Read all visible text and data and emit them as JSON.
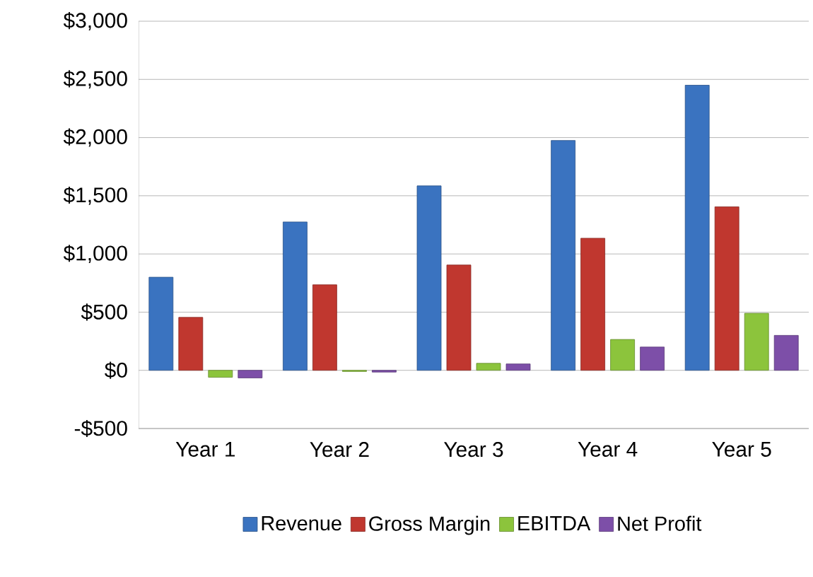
{
  "chart_data": {
    "type": "bar",
    "categories": [
      "Year 1",
      "Year 2",
      "Year 3",
      "Year 4",
      "Year 5"
    ],
    "series": [
      {
        "name": "Revenue",
        "color": "#3a73c0",
        "values": [
          800,
          1275,
          1585,
          1975,
          2450
        ]
      },
      {
        "name": "Gross Margin",
        "color": "#c0372f",
        "values": [
          455,
          735,
          905,
          1135,
          1405
        ]
      },
      {
        "name": "EBITDA",
        "color": "#8cc43c",
        "values": [
          -60,
          -10,
          60,
          265,
          490
        ]
      },
      {
        "name": "Net Profit",
        "color": "#7d4fa8",
        "values": [
          -65,
          -15,
          55,
          200,
          300
        ]
      }
    ],
    "ylim": [
      -500,
      3000
    ],
    "yticks": [
      {
        "value": -500,
        "label": "-$500"
      },
      {
        "value": 0,
        "label": "$0"
      },
      {
        "value": 500,
        "label": "$500"
      },
      {
        "value": 1000,
        "label": "$1,000"
      },
      {
        "value": 1500,
        "label": "$1,500"
      },
      {
        "value": 2000,
        "label": "$2,000"
      },
      {
        "value": 2500,
        "label": "$2,500"
      },
      {
        "value": 3000,
        "label": "$3,000"
      }
    ],
    "grid": "y",
    "legend": "bottom"
  }
}
